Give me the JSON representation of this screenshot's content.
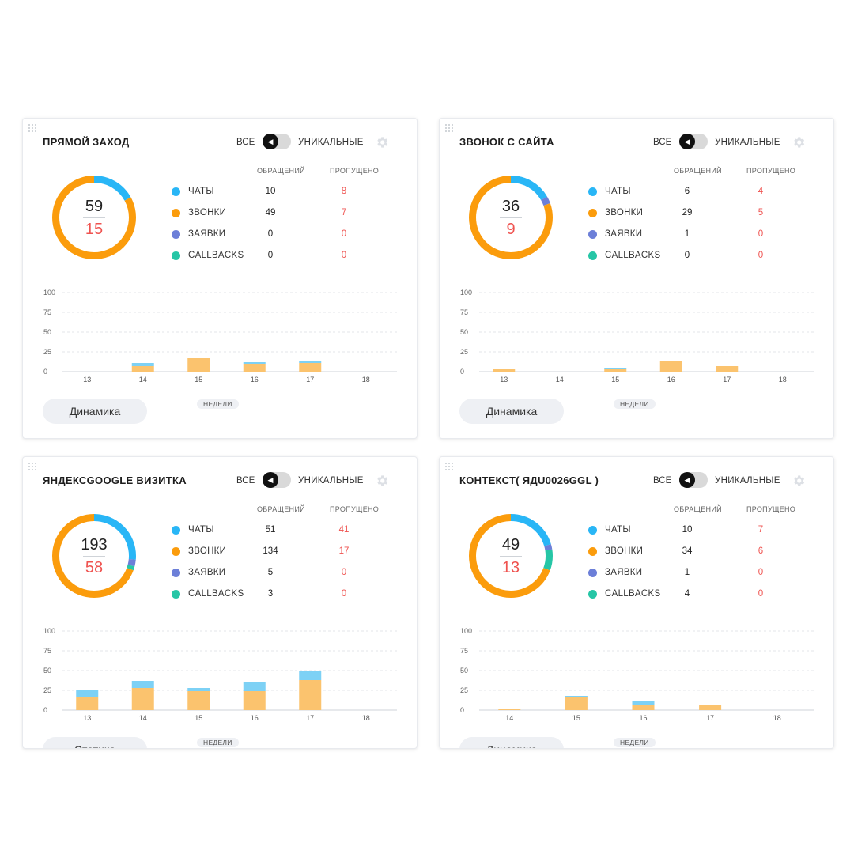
{
  "toggle_all_label": "ВСЕ",
  "toggle_unique_label": "УНИКАЛЬНЫЕ",
  "column_requests": "ОБРАЩЕНИЙ",
  "column_missed": "ПРОПУЩЕНО",
  "weeks_label": "НЕДЕЛИ",
  "colors": {
    "chats": "#29b6f6",
    "calls": "#fb9c0c",
    "requests": "#6c7fd8",
    "callbacks": "#26c6a6",
    "missed": "#ef5350",
    "bar_chats": "#7dd1f5",
    "bar_calls": "#fbc36e"
  },
  "widgets": [
    {
      "title": "ПРЯМОЙ ЗАХОД",
      "total": "59",
      "missed_total": "15",
      "button_label": "Динамика",
      "rows": [
        {
          "key": "chats",
          "label": "ЧАТЫ",
          "requests": "10",
          "missed": "8"
        },
        {
          "key": "calls",
          "label": "ЗВОНКИ",
          "requests": "49",
          "missed": "7"
        },
        {
          "key": "requests",
          "label": "ЗАЯВКИ",
          "requests": "0",
          "missed": "0"
        },
        {
          "key": "callbacks",
          "label": "CALLBACKS",
          "requests": "0",
          "missed": "0"
        }
      ]
    },
    {
      "title": "ЗВОНОК С САЙТА",
      "total": "36",
      "missed_total": "9",
      "button_label": "Динамика",
      "rows": [
        {
          "key": "chats",
          "label": "ЧАТЫ",
          "requests": "6",
          "missed": "4"
        },
        {
          "key": "calls",
          "label": "ЗВОНКИ",
          "requests": "29",
          "missed": "5"
        },
        {
          "key": "requests",
          "label": "ЗАЯВКИ",
          "requests": "1",
          "missed": "0"
        },
        {
          "key": "callbacks",
          "label": "CALLBACKS",
          "requests": "0",
          "missed": "0"
        }
      ]
    },
    {
      "title": "ЯНДЕКСGOOGLE ВИЗИТКА",
      "total": "193",
      "missed_total": "58",
      "button_label": "Статика",
      "rows": [
        {
          "key": "chats",
          "label": "ЧАТЫ",
          "requests": "51",
          "missed": "41"
        },
        {
          "key": "calls",
          "label": "ЗВОНКИ",
          "requests": "134",
          "missed": "17"
        },
        {
          "key": "requests",
          "label": "ЗАЯВКИ",
          "requests": "5",
          "missed": "0"
        },
        {
          "key": "callbacks",
          "label": "CALLBACKS",
          "requests": "3",
          "missed": "0"
        }
      ]
    },
    {
      "title": "КОНТЕКСТ( ЯДU0026GGL )",
      "total": "49",
      "missed_total": "13",
      "button_label": "Динамика",
      "rows": [
        {
          "key": "chats",
          "label": "ЧАТЫ",
          "requests": "10",
          "missed": "7"
        },
        {
          "key": "calls",
          "label": "ЗВОНКИ",
          "requests": "34",
          "missed": "6"
        },
        {
          "key": "requests",
          "label": "ЗАЯВКИ",
          "requests": "1",
          "missed": "0"
        },
        {
          "key": "callbacks",
          "label": "CALLBACKS",
          "requests": "4",
          "missed": "0"
        }
      ]
    }
  ],
  "chart_data": [
    {
      "type": "bar",
      "stacked": true,
      "y_ticks": [
        "100",
        "75",
        "50",
        "25",
        "0"
      ],
      "ylim": [
        0,
        100
      ],
      "categories": [
        "13",
        "14",
        "15",
        "16",
        "17",
        "18"
      ],
      "series": [
        {
          "key": "calls",
          "values": [
            0,
            7,
            17,
            10,
            11,
            0
          ]
        },
        {
          "key": "chats",
          "values": [
            0,
            4,
            0,
            2,
            3,
            0
          ]
        }
      ]
    },
    {
      "type": "bar",
      "stacked": true,
      "y_ticks": [
        "100",
        "75",
        "50",
        "25",
        "0"
      ],
      "ylim": [
        0,
        100
      ],
      "categories": [
        "13",
        "14",
        "15",
        "16",
        "17",
        "18"
      ],
      "series": [
        {
          "key": "calls",
          "values": [
            3,
            0,
            3,
            13,
            7,
            0
          ]
        },
        {
          "key": "chats",
          "values": [
            0,
            0,
            1,
            0,
            0,
            0
          ]
        }
      ]
    },
    {
      "type": "bar",
      "stacked": true,
      "y_ticks": [
        "100",
        "75",
        "50",
        "25",
        "0"
      ],
      "ylim": [
        0,
        100
      ],
      "categories": [
        "13",
        "14",
        "15",
        "16",
        "17",
        "18"
      ],
      "series": [
        {
          "key": "calls",
          "values": [
            17,
            28,
            24,
            24,
            38,
            0
          ]
        },
        {
          "key": "chats",
          "values": [
            9,
            9,
            4,
            11,
            12,
            0
          ]
        },
        {
          "key": "callbacks",
          "values": [
            0,
            0,
            0,
            1,
            0,
            0
          ]
        }
      ]
    },
    {
      "type": "bar",
      "stacked": true,
      "y_ticks": [
        "100",
        "75",
        "50",
        "25",
        "0"
      ],
      "ylim": [
        0,
        100
      ],
      "categories": [
        "14",
        "15",
        "16",
        "17",
        "18"
      ],
      "series": [
        {
          "key": "calls",
          "values": [
            2,
            16,
            7,
            7,
            0
          ]
        },
        {
          "key": "chats",
          "values": [
            0,
            2,
            5,
            0,
            0
          ]
        }
      ]
    }
  ]
}
